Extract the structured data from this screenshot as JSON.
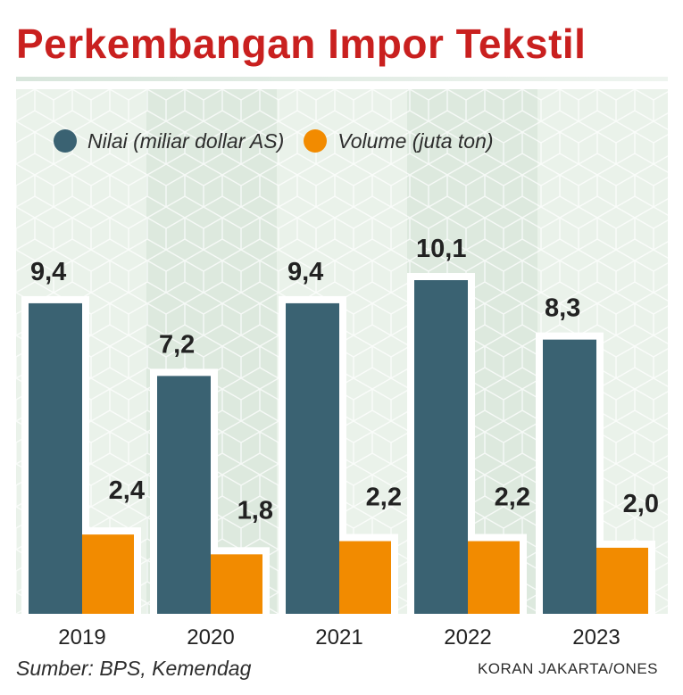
{
  "colors": {
    "title": "#c9201f",
    "nilai": "#3a6272",
    "volume": "#f28b00",
    "panel_light": "#eaf2ea",
    "panel_dark": "#dde9de",
    "text": "#222222"
  },
  "chart_data": {
    "type": "bar",
    "title": "Perkembangan Impor Tekstil",
    "categories": [
      "2019",
      "2020",
      "2021",
      "2022",
      "2023"
    ],
    "series": [
      {
        "name": "Nilai (miliar dollar AS)",
        "values": [
          9.4,
          7.2,
          9.4,
          10.1,
          8.3
        ],
        "labels": [
          "9,4",
          "7,2",
          "9,4",
          "10,1",
          "8,3"
        ]
      },
      {
        "name": "Volume (juta ton)",
        "values": [
          2.4,
          1.8,
          2.2,
          2.2,
          2.0
        ],
        "labels": [
          "2,4",
          "1,8",
          "2,2",
          "2,2",
          "2,0"
        ]
      }
    ],
    "ylim": [
      0,
      11
    ],
    "grid": false,
    "legend": "top"
  },
  "source": "Sumber: BPS, Kemendag",
  "credit": "KORAN JAKARTA/ONES"
}
